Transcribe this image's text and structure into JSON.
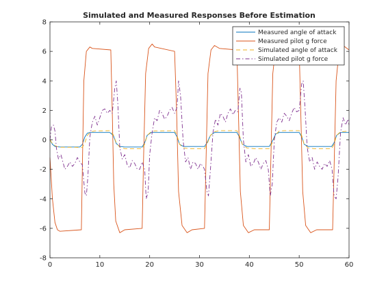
{
  "chart_data": {
    "type": "line",
    "title": "Simulated and Measured Responses Before Estimation",
    "xlabel": "",
    "ylabel": "",
    "xlim": [
      0,
      60
    ],
    "ylim": [
      -8,
      8
    ],
    "xticks": [
      0,
      10,
      20,
      30,
      40,
      50,
      60
    ],
    "yticks": [
      -8,
      -6,
      -4,
      -2,
      0,
      2,
      4,
      6,
      8
    ],
    "grid": false,
    "legend_position": "top-right",
    "series": [
      {
        "name": "Measured angle of attack",
        "color": "#0072BD",
        "style": "solid",
        "points": [
          [
            0,
            0.0
          ],
          [
            0.5,
            -0.3
          ],
          [
            1,
            -0.45
          ],
          [
            2,
            -0.48
          ],
          [
            3,
            -0.48
          ],
          [
            6,
            -0.48
          ],
          [
            6.5,
            -0.3
          ],
          [
            7,
            0.2
          ],
          [
            7.5,
            0.45
          ],
          [
            8,
            0.5
          ],
          [
            12,
            0.5
          ],
          [
            12.7,
            0.3
          ],
          [
            13.3,
            -0.25
          ],
          [
            14,
            -0.45
          ],
          [
            15,
            -0.48
          ],
          [
            18.5,
            -0.48
          ],
          [
            19,
            -0.2
          ],
          [
            19.5,
            0.3
          ],
          [
            20.3,
            0.5
          ],
          [
            25,
            0.5
          ],
          [
            25.5,
            0.2
          ],
          [
            26,
            -0.3
          ],
          [
            26.8,
            -0.45
          ],
          [
            31,
            -0.45
          ],
          [
            31.5,
            -0.2
          ],
          [
            32.2,
            0.3
          ],
          [
            33,
            0.5
          ],
          [
            37.5,
            0.5
          ],
          [
            38,
            0.2
          ],
          [
            38.6,
            -0.3
          ],
          [
            39.5,
            -0.45
          ],
          [
            44,
            -0.45
          ],
          [
            44.6,
            -0.1
          ],
          [
            45.3,
            0.4
          ],
          [
            46,
            0.5
          ],
          [
            50,
            0.5
          ],
          [
            50.5,
            0.2
          ],
          [
            51,
            -0.3
          ],
          [
            51.8,
            -0.45
          ],
          [
            56.5,
            -0.45
          ],
          [
            57,
            -0.2
          ],
          [
            57.5,
            0.3
          ],
          [
            58.3,
            0.5
          ],
          [
            60,
            0.5
          ]
        ]
      },
      {
        "name": "Measured pilot g force",
        "color": "#D95319",
        "style": "solid",
        "points": [
          [
            0,
            -1.2
          ],
          [
            0.5,
            -4.0
          ],
          [
            1,
            -5.6
          ],
          [
            1.5,
            -6.1
          ],
          [
            2,
            -6.2
          ],
          [
            6.3,
            -6.1
          ],
          [
            6.5,
            -2.0
          ],
          [
            6.8,
            4.0
          ],
          [
            7.3,
            6.0
          ],
          [
            8,
            6.3
          ],
          [
            8.5,
            6.2
          ],
          [
            12.2,
            6.1
          ],
          [
            12.5,
            2.0
          ],
          [
            12.8,
            -3.0
          ],
          [
            13.2,
            -5.5
          ],
          [
            14,
            -6.3
          ],
          [
            15,
            -6.1
          ],
          [
            18.5,
            -6.0
          ],
          [
            18.8,
            -1.0
          ],
          [
            19.2,
            4.5
          ],
          [
            19.8,
            6.2
          ],
          [
            20.5,
            6.5
          ],
          [
            21,
            6.3
          ],
          [
            25,
            6.0
          ],
          [
            25.4,
            2.0
          ],
          [
            25.8,
            -3.5
          ],
          [
            26.5,
            -5.8
          ],
          [
            27.5,
            -6.3
          ],
          [
            28.5,
            -6.1
          ],
          [
            31,
            -6.0
          ],
          [
            31.3,
            -1.5
          ],
          [
            31.7,
            4.5
          ],
          [
            32.3,
            6.1
          ],
          [
            33,
            6.4
          ],
          [
            34,
            6.2
          ],
          [
            37.5,
            6.1
          ],
          [
            37.8,
            2.0
          ],
          [
            38.2,
            -3.5
          ],
          [
            38.8,
            -5.8
          ],
          [
            39.8,
            -6.3
          ],
          [
            41,
            -6.1
          ],
          [
            44,
            -6.1
          ],
          [
            44.3,
            -1.5
          ],
          [
            44.7,
            4.5
          ],
          [
            45.2,
            6.0
          ],
          [
            46,
            6.5
          ],
          [
            47,
            6.2
          ],
          [
            50,
            6.1
          ],
          [
            50.3,
            2.0
          ],
          [
            50.7,
            -3.5
          ],
          [
            51.3,
            -5.8
          ],
          [
            52.3,
            -6.3
          ],
          [
            53.5,
            -6.1
          ],
          [
            56.7,
            -6.1
          ],
          [
            57,
            -2.0
          ],
          [
            57.4,
            4.0
          ],
          [
            58,
            6.0
          ],
          [
            58.8,
            6.4
          ],
          [
            60,
            6.1
          ]
        ]
      },
      {
        "name": "Simulated angle of attack",
        "color": "#EDB120",
        "style": "dashed",
        "points": [
          [
            0,
            0.0
          ],
          [
            0.5,
            -0.25
          ],
          [
            1.3,
            -0.45
          ],
          [
            2,
            -0.5
          ],
          [
            5,
            -0.5
          ],
          [
            6.5,
            -0.52
          ],
          [
            7,
            -0.2
          ],
          [
            7.5,
            0.3
          ],
          [
            8.2,
            0.55
          ],
          [
            9,
            0.6
          ],
          [
            12,
            0.62
          ],
          [
            12.7,
            0.35
          ],
          [
            13.3,
            -0.2
          ],
          [
            14,
            -0.5
          ],
          [
            15,
            -0.6
          ],
          [
            18.5,
            -0.6
          ],
          [
            19,
            -0.3
          ],
          [
            19.5,
            0.3
          ],
          [
            20.3,
            0.55
          ],
          [
            21,
            0.6
          ],
          [
            25,
            0.62
          ],
          [
            25.5,
            0.3
          ],
          [
            26,
            -0.3
          ],
          [
            26.8,
            -0.55
          ],
          [
            28,
            -0.6
          ],
          [
            31,
            -0.6
          ],
          [
            31.5,
            -0.3
          ],
          [
            32.2,
            0.3
          ],
          [
            33,
            0.55
          ],
          [
            34,
            0.62
          ],
          [
            37.5,
            0.62
          ],
          [
            38,
            0.3
          ],
          [
            38.6,
            -0.3
          ],
          [
            39.5,
            -0.55
          ],
          [
            41,
            -0.6
          ],
          [
            44,
            -0.6
          ],
          [
            44.6,
            -0.2
          ],
          [
            45.3,
            0.35
          ],
          [
            46,
            0.6
          ],
          [
            47,
            0.62
          ],
          [
            50,
            0.62
          ],
          [
            50.5,
            0.3
          ],
          [
            51,
            -0.3
          ],
          [
            51.8,
            -0.55
          ],
          [
            53,
            -0.6
          ],
          [
            56.5,
            -0.6
          ],
          [
            57,
            -0.3
          ],
          [
            57.5,
            0.3
          ],
          [
            58.3,
            0.55
          ],
          [
            60,
            0.6
          ]
        ]
      },
      {
        "name": "Simulated pilot g force",
        "color": "#7E2F8E",
        "style": "dashdot",
        "points": [
          [
            0,
            0.0
          ],
          [
            0.3,
            0.9
          ],
          [
            0.7,
            1.0
          ],
          [
            1,
            0.6
          ],
          [
            1.3,
            -0.6
          ],
          [
            1.7,
            -1.3
          ],
          [
            2.2,
            -1.0
          ],
          [
            2.6,
            -1.5
          ],
          [
            3,
            -2.0
          ],
          [
            3.5,
            -1.8
          ],
          [
            4,
            -1.5
          ],
          [
            4.5,
            -1.8
          ],
          [
            5,
            -1.6
          ],
          [
            5.5,
            -1.2
          ],
          [
            6,
            -1.5
          ],
          [
            6.5,
            -1.7
          ],
          [
            7,
            -3.6
          ],
          [
            7.3,
            -3.8
          ],
          [
            7.6,
            -2.5
          ],
          [
            8,
            0.2
          ],
          [
            8.5,
            1.2
          ],
          [
            9,
            1.6
          ],
          [
            9.5,
            1.0
          ],
          [
            10,
            1.5
          ],
          [
            10.5,
            2.0
          ],
          [
            11,
            2.1
          ],
          [
            11.5,
            1.8
          ],
          [
            12,
            2.0
          ],
          [
            12.5,
            1.8
          ],
          [
            13,
            3.5
          ],
          [
            13.3,
            4.0
          ],
          [
            13.6,
            2.5
          ],
          [
            14,
            -0.5
          ],
          [
            14.5,
            -1.3
          ],
          [
            15,
            -1.0
          ],
          [
            15.5,
            -1.7
          ],
          [
            16,
            -1.9
          ],
          [
            16.5,
            -1.4
          ],
          [
            17,
            -1.6
          ],
          [
            17.5,
            -2.0
          ],
          [
            18,
            -2.0
          ],
          [
            18.5,
            -1.5
          ],
          [
            19,
            -2.0
          ],
          [
            19.3,
            -4.0
          ],
          [
            19.7,
            -3.5
          ],
          [
            20,
            -1.0
          ],
          [
            20.5,
            0.5
          ],
          [
            21,
            1.5
          ],
          [
            21.5,
            1.3
          ],
          [
            22,
            2.0
          ],
          [
            22.5,
            1.8
          ],
          [
            23,
            1.4
          ],
          [
            23.5,
            1.6
          ],
          [
            24,
            2.0
          ],
          [
            24.5,
            2.2
          ],
          [
            25,
            1.8
          ],
          [
            25.5,
            2.2
          ],
          [
            25.8,
            4.0
          ],
          [
            26.2,
            3.0
          ],
          [
            26.7,
            0.0
          ],
          [
            27.2,
            -1.5
          ],
          [
            27.7,
            -1.2
          ],
          [
            28.2,
            -2.0
          ],
          [
            28.7,
            -1.5
          ],
          [
            29.2,
            -1.6
          ],
          [
            29.7,
            -2.0
          ],
          [
            30.2,
            -1.6
          ],
          [
            30.7,
            -1.8
          ],
          [
            31,
            -2.0
          ],
          [
            31.5,
            -3.5
          ],
          [
            31.8,
            -3.8
          ],
          [
            32.2,
            -2.0
          ],
          [
            32.7,
            0.5
          ],
          [
            33.2,
            1.4
          ],
          [
            33.7,
            1.0
          ],
          [
            34.2,
            1.8
          ],
          [
            34.7,
            1.6
          ],
          [
            35.2,
            1.2
          ],
          [
            35.7,
            1.8
          ],
          [
            36.2,
            2.1
          ],
          [
            36.7,
            1.7
          ],
          [
            37.2,
            2.0
          ],
          [
            37.7,
            1.9
          ],
          [
            38.1,
            3.5
          ],
          [
            38.4,
            3.2
          ],
          [
            38.8,
            0.0
          ],
          [
            39.3,
            -1.5
          ],
          [
            39.8,
            -1.0
          ],
          [
            40.3,
            -1.8
          ],
          [
            40.8,
            -1.6
          ],
          [
            41.3,
            -1.2
          ],
          [
            41.8,
            -1.5
          ],
          [
            42.3,
            -2.0
          ],
          [
            42.8,
            -1.6
          ],
          [
            43.3,
            -1.4
          ],
          [
            43.8,
            -2.0
          ],
          [
            44.2,
            -3.8
          ],
          [
            44.6,
            -3.0
          ],
          [
            45,
            0.0
          ],
          [
            45.5,
            1.2
          ],
          [
            46,
            1.5
          ],
          [
            46.5,
            1.2
          ],
          [
            47,
            1.8
          ],
          [
            47.5,
            1.6
          ],
          [
            48,
            1.3
          ],
          [
            48.5,
            1.8
          ],
          [
            49,
            2.2
          ],
          [
            49.5,
            1.9
          ],
          [
            50,
            2.0
          ],
          [
            50.5,
            3.8
          ],
          [
            50.8,
            4.0
          ],
          [
            51.2,
            2.0
          ],
          [
            51.6,
            -0.5
          ],
          [
            52.1,
            -1.5
          ],
          [
            52.6,
            -1.2
          ],
          [
            53.1,
            -2.0
          ],
          [
            53.6,
            -1.5
          ],
          [
            54.1,
            -1.8
          ],
          [
            54.6,
            -2.0
          ],
          [
            55.1,
            -1.6
          ],
          [
            55.6,
            -1.8
          ],
          [
            56.1,
            -1.4
          ],
          [
            56.6,
            -2.0
          ],
          [
            57,
            -3.8
          ],
          [
            57.4,
            -4.0
          ],
          [
            57.8,
            -2.5
          ],
          [
            58.3,
            0.5
          ],
          [
            58.8,
            1.5
          ],
          [
            59.3,
            1.0
          ],
          [
            59.8,
            1.4
          ],
          [
            60,
            1.0
          ]
        ]
      }
    ]
  }
}
